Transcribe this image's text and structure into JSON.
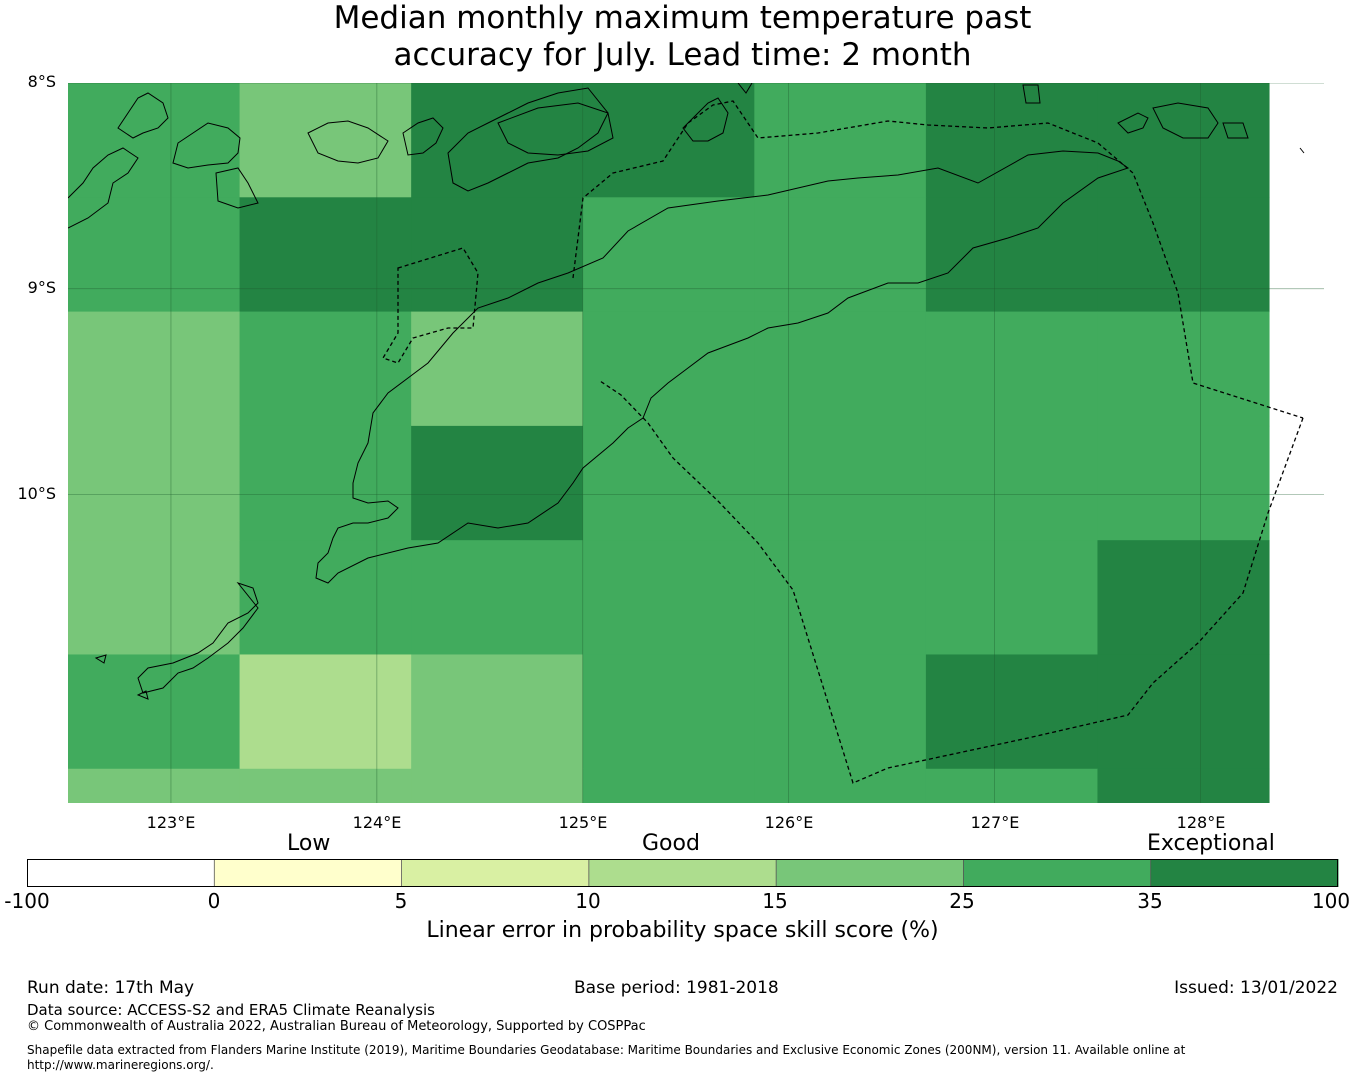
{
  "title": {
    "line1": "Median monthly maximum temperature past",
    "line2": "accuracy for July. Lead time: 2 month"
  },
  "map": {
    "lat_labels": [
      "8°S",
      "9°S",
      "10°S"
    ],
    "lon_labels": [
      "123°E",
      "124°E",
      "125°E",
      "126°E",
      "127°E",
      "128°E"
    ],
    "lon_range": [
      122.5,
      128.6
    ],
    "lat_range": [
      -8.0,
      -11.5
    ],
    "cell_size_deg": [
      0.8333,
      0.5556
    ],
    "grid_origin": [
      122.5,
      -8.0
    ],
    "skill_grid": [
      [
        25,
        15,
        35,
        35,
        25,
        35,
        35
      ],
      [
        25,
        35,
        35,
        25,
        25,
        35,
        35
      ],
      [
        15,
        25,
        15,
        25,
        25,
        25,
        25
      ],
      [
        15,
        25,
        35,
        25,
        25,
        25,
        25
      ],
      [
        15,
        25,
        25,
        25,
        25,
        25,
        35
      ],
      [
        25,
        10,
        15,
        25,
        25,
        35,
        35
      ],
      [
        15,
        15,
        15,
        25,
        25,
        25,
        35
      ]
    ]
  },
  "colorbar": {
    "categories": [
      "Low",
      "Good",
      "Exceptional"
    ],
    "ticks": [
      "-100",
      "0",
      "5",
      "10",
      "15",
      "25",
      "35",
      "100"
    ],
    "bins": [
      {
        "from": -100,
        "to": 0,
        "color": "#ffffff"
      },
      {
        "from": 0,
        "to": 5,
        "color": "#ffffcc"
      },
      {
        "from": 5,
        "to": 10,
        "color": "#d9f0a3"
      },
      {
        "from": 10,
        "to": 15,
        "color": "#addd8e"
      },
      {
        "from": 15,
        "to": 25,
        "color": "#78c679"
      },
      {
        "from": 25,
        "to": 35,
        "color": "#41ab5d"
      },
      {
        "from": 35,
        "to": 100,
        "color": "#238443"
      }
    ],
    "label": "Linear error in probability space skill score (%)"
  },
  "footer": {
    "run_date": "Run date: 17th May",
    "base_period": "Base period: 1981-2018",
    "issued": "Issued: 13/01/2022",
    "data_source": "Data source: ACCESS-S2 and ERA5 Climate Reanalysis",
    "copyright": "© Commonwealth of Australia 2022, Australian Bureau of Meteorology, Supported by COSPPac",
    "shapefile_line1": "Shapefile data extracted from Flanders Marine Institute (2019), Maritime Boundaries Geodatabase: Maritime Boundaries and Exclusive Economic Zones (200NM), version 11. Available online at",
    "shapefile_line2": "http://www.marineregions.org/."
  }
}
